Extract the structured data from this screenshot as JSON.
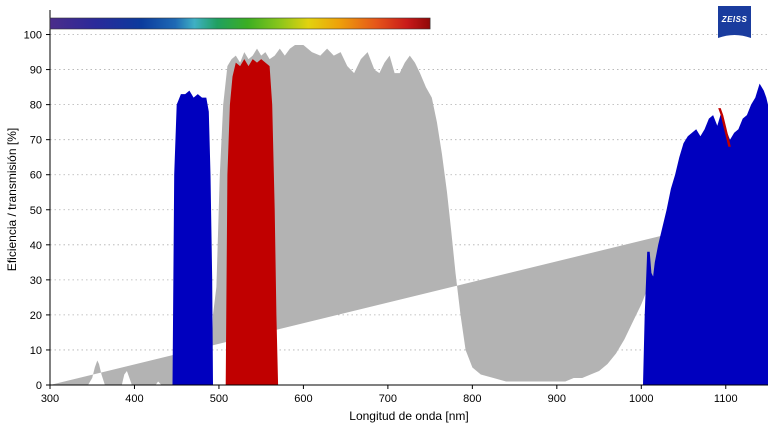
{
  "chart_data": {
    "type": "area",
    "title": "",
    "xlabel": "Longitud de onda [nm]",
    "ylabel": "Eficiencia / transmisión [%]",
    "xlim": [
      300,
      1150
    ],
    "ylim": [
      0,
      107
    ],
    "xticks": [
      300,
      400,
      500,
      600,
      700,
      800,
      900,
      1000,
      1100
    ],
    "yticks": [
      0,
      10,
      20,
      30,
      40,
      50,
      60,
      70,
      80,
      90,
      100
    ],
    "grid": "horizontal-dotted",
    "wavelength_color_bar": {
      "range": [
        300,
        750
      ]
    },
    "series": [
      {
        "color": "#b3b3b3",
        "points": [
          [
            300,
            0
          ],
          [
            345,
            0
          ],
          [
            350,
            2
          ],
          [
            353,
            5
          ],
          [
            356,
            7
          ],
          [
            358,
            6
          ],
          [
            361,
            3
          ],
          [
            365,
            0
          ],
          [
            385,
            0
          ],
          [
            388,
            3
          ],
          [
            391,
            4
          ],
          [
            394,
            2
          ],
          [
            397,
            0
          ],
          [
            425,
            0
          ],
          [
            428,
            1
          ],
          [
            432,
            0
          ],
          [
            490,
            0
          ],
          [
            493,
            20
          ],
          [
            497,
            28
          ],
          [
            501,
            60
          ],
          [
            505,
            80
          ],
          [
            510,
            91
          ],
          [
            515,
            93
          ],
          [
            520,
            94
          ],
          [
            525,
            92
          ],
          [
            530,
            95
          ],
          [
            535,
            93
          ],
          [
            540,
            94
          ],
          [
            545,
            96
          ],
          [
            550,
            94
          ],
          [
            555,
            95
          ],
          [
            560,
            93
          ],
          [
            566,
            94
          ],
          [
            572,
            96
          ],
          [
            578,
            94
          ],
          [
            584,
            96
          ],
          [
            590,
            97
          ],
          [
            600,
            97
          ],
          [
            610,
            95
          ],
          [
            620,
            94
          ],
          [
            628,
            96
          ],
          [
            636,
            94
          ],
          [
            644,
            95
          ],
          [
            652,
            91
          ],
          [
            660,
            89
          ],
          [
            668,
            93
          ],
          [
            676,
            95
          ],
          [
            684,
            90
          ],
          [
            690,
            89
          ],
          [
            696,
            92
          ],
          [
            702,
            94
          ],
          [
            708,
            89
          ],
          [
            714,
            89
          ],
          [
            720,
            92
          ],
          [
            726,
            94
          ],
          [
            732,
            92
          ],
          [
            738,
            89
          ],
          [
            745,
            85
          ],
          [
            752,
            82
          ],
          [
            758,
            75
          ],
          [
            764,
            66
          ],
          [
            770,
            55
          ],
          [
            775,
            44
          ],
          [
            780,
            32
          ],
          [
            786,
            20
          ],
          [
            792,
            10
          ],
          [
            800,
            5
          ],
          [
            810,
            3
          ],
          [
            825,
            2
          ],
          [
            840,
            1
          ],
          [
            900,
            1
          ],
          [
            910,
            1
          ],
          [
            920,
            2
          ],
          [
            930,
            2
          ],
          [
            940,
            3
          ],
          [
            950,
            4
          ],
          [
            960,
            6
          ],
          [
            970,
            9
          ],
          [
            980,
            13
          ],
          [
            990,
            18
          ],
          [
            1000,
            23
          ],
          [
            1005,
            26
          ],
          [
            1010,
            29
          ],
          [
            1015,
            32
          ],
          [
            1020,
            36
          ],
          [
            1025,
            40
          ],
          [
            1030,
            43
          ],
          [
            1035,
            46
          ],
          [
            1038,
            47
          ],
          [
            1045,
            50
          ],
          [
            1150,
            50
          ]
        ]
      },
      {
        "color": "#0000bf",
        "points": [
          [
            445,
            0
          ],
          [
            447,
            60
          ],
          [
            450,
            80
          ],
          [
            455,
            83
          ],
          [
            460,
            83
          ],
          [
            465,
            84
          ],
          [
            470,
            82
          ],
          [
            475,
            83
          ],
          [
            480,
            82
          ],
          [
            485,
            82
          ],
          [
            488,
            78
          ],
          [
            490,
            60
          ],
          [
            492,
            30
          ],
          [
            493,
            0
          ],
          [
            1002,
            0
          ],
          [
            1004,
            20
          ],
          [
            1007,
            38
          ],
          [
            1010,
            38
          ],
          [
            1012,
            32
          ],
          [
            1014,
            31
          ],
          [
            1016,
            35
          ],
          [
            1020,
            40
          ],
          [
            1025,
            45
          ],
          [
            1030,
            50
          ],
          [
            1035,
            56
          ],
          [
            1040,
            60
          ],
          [
            1045,
            65
          ],
          [
            1050,
            69
          ],
          [
            1055,
            71
          ],
          [
            1060,
            72
          ],
          [
            1065,
            73
          ],
          [
            1070,
            71
          ],
          [
            1075,
            73
          ],
          [
            1080,
            76
          ],
          [
            1085,
            77
          ],
          [
            1090,
            74
          ],
          [
            1095,
            78
          ],
          [
            1100,
            73
          ],
          [
            1105,
            70
          ],
          [
            1110,
            72
          ],
          [
            1115,
            73
          ],
          [
            1120,
            76
          ],
          [
            1125,
            77
          ],
          [
            1130,
            80
          ],
          [
            1135,
            82
          ],
          [
            1140,
            86
          ],
          [
            1145,
            84
          ],
          [
            1148,
            82
          ],
          [
            1150,
            80
          ],
          [
            1150,
            0
          ]
        ]
      },
      {
        "color": "#c00000",
        "points": [
          [
            508,
            0
          ],
          [
            510,
            60
          ],
          [
            513,
            80
          ],
          [
            516,
            88
          ],
          [
            520,
            92
          ],
          [
            525,
            91
          ],
          [
            530,
            93
          ],
          [
            535,
            91
          ],
          [
            540,
            93
          ],
          [
            545,
            92
          ],
          [
            550,
            93
          ],
          [
            555,
            92
          ],
          [
            560,
            91
          ],
          [
            563,
            80
          ],
          [
            566,
            50
          ],
          [
            568,
            20
          ],
          [
            570,
            0
          ]
        ]
      },
      {
        "color": "#c00000",
        "points": [
          [
            1091,
            79
          ],
          [
            1094,
            77
          ],
          [
            1097,
            74
          ],
          [
            1100,
            71
          ],
          [
            1103,
            68
          ],
          [
            1106,
            68
          ],
          [
            1103,
            71
          ],
          [
            1100,
            74
          ],
          [
            1097,
            77
          ],
          [
            1094,
            79
          ]
        ]
      }
    ]
  },
  "logo": {
    "text": "ZEISS",
    "color": "#1a3c9e"
  }
}
